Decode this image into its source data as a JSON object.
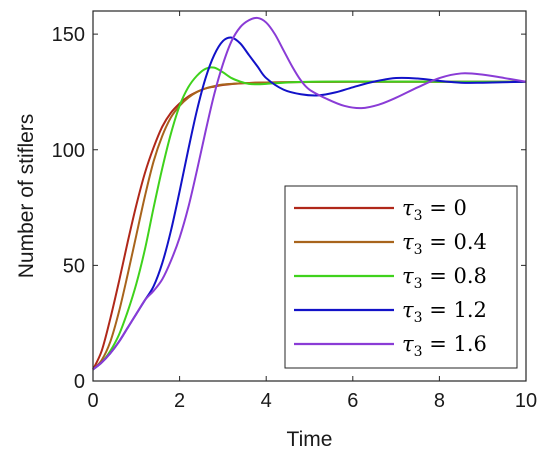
{
  "chart_data": {
    "type": "line",
    "xlabel": "Time",
    "ylabel": "Number of stiflers",
    "xlim": [
      0,
      10
    ],
    "ylim": [
      0,
      160
    ],
    "xticks": [
      "0",
      "2",
      "4",
      "6",
      "8",
      "10"
    ],
    "yticks": [
      "0",
      "50",
      "100",
      "150"
    ],
    "grid": false,
    "legend_position": "bottom-right",
    "series": [
      {
        "name": "τ3 = 0",
        "color": "#b0281a",
        "points": [
          [
            0,
            5
          ],
          [
            0.2,
            13
          ],
          [
            0.4,
            27
          ],
          [
            0.6,
            43
          ],
          [
            0.8,
            60
          ],
          [
            1.0,
            76
          ],
          [
            1.2,
            90
          ],
          [
            1.4,
            101
          ],
          [
            1.6,
            110
          ],
          [
            1.8,
            116
          ],
          [
            2.0,
            120
          ],
          [
            2.2,
            123
          ],
          [
            2.4,
            125
          ],
          [
            2.6,
            126.5
          ],
          [
            2.8,
            127.3
          ],
          [
            3.0,
            128
          ],
          [
            3.5,
            128.8
          ],
          [
            4.0,
            129.1
          ],
          [
            5.0,
            129.3
          ],
          [
            6.0,
            129.4
          ],
          [
            8.0,
            129.4
          ],
          [
            10.0,
            129.4
          ]
        ]
      },
      {
        "name": "τ3 = 0.4",
        "color": "#a8641c",
        "points": [
          [
            0,
            5
          ],
          [
            0.2,
            9
          ],
          [
            0.4,
            17
          ],
          [
            0.6,
            30
          ],
          [
            0.8,
            46
          ],
          [
            1.0,
            63
          ],
          [
            1.2,
            80
          ],
          [
            1.4,
            95
          ],
          [
            1.6,
            106
          ],
          [
            1.8,
            114
          ],
          [
            2.0,
            119
          ],
          [
            2.2,
            122.5
          ],
          [
            2.4,
            125
          ],
          [
            2.6,
            126.5
          ],
          [
            2.8,
            127.5
          ],
          [
            3.0,
            128.2
          ],
          [
            3.5,
            128.8
          ],
          [
            4.0,
            129.1
          ],
          [
            5.0,
            129.3
          ],
          [
            6.0,
            129.4
          ],
          [
            8.0,
            129.4
          ],
          [
            10.0,
            129.4
          ]
        ]
      },
      {
        "name": "τ3 = 0.8",
        "color": "#3fd21c",
        "points": [
          [
            0,
            5
          ],
          [
            0.2,
            8
          ],
          [
            0.4,
            13
          ],
          [
            0.6,
            20
          ],
          [
            0.8,
            30
          ],
          [
            1.0,
            42
          ],
          [
            1.2,
            57
          ],
          [
            1.4,
            75
          ],
          [
            1.6,
            92
          ],
          [
            1.8,
            107
          ],
          [
            2.0,
            119
          ],
          [
            2.2,
            127
          ],
          [
            2.4,
            132
          ],
          [
            2.6,
            135
          ],
          [
            2.8,
            135.5
          ],
          [
            3.0,
            133.5
          ],
          [
            3.2,
            131
          ],
          [
            3.4,
            129.5
          ],
          [
            3.6,
            128.5
          ],
          [
            3.8,
            128.3
          ],
          [
            4.0,
            128.5
          ],
          [
            4.5,
            129.1
          ],
          [
            5.0,
            129.4
          ],
          [
            6.0,
            129.5
          ],
          [
            8.0,
            129.4
          ],
          [
            10.0,
            129.4
          ]
        ]
      },
      {
        "name": "τ3 = 1.2",
        "color": "#1212c8",
        "points": [
          [
            0,
            5
          ],
          [
            0.2,
            8
          ],
          [
            0.4,
            12
          ],
          [
            0.6,
            17
          ],
          [
            0.8,
            23
          ],
          [
            1.0,
            29
          ],
          [
            1.2,
            35
          ],
          [
            1.4,
            41
          ],
          [
            1.6,
            51
          ],
          [
            1.8,
            65
          ],
          [
            2.0,
            82
          ],
          [
            2.2,
            100
          ],
          [
            2.4,
            117
          ],
          [
            2.6,
            131
          ],
          [
            2.8,
            141
          ],
          [
            3.0,
            147
          ],
          [
            3.2,
            148.5
          ],
          [
            3.4,
            146
          ],
          [
            3.6,
            141
          ],
          [
            3.8,
            136
          ],
          [
            4.0,
            131
          ],
          [
            4.4,
            126
          ],
          [
            4.8,
            124
          ],
          [
            5.2,
            123.5
          ],
          [
            5.6,
            124.8
          ],
          [
            6.0,
            127
          ],
          [
            6.5,
            129.5
          ],
          [
            7.0,
            131
          ],
          [
            7.5,
            130.8
          ],
          [
            8.0,
            129.8
          ],
          [
            8.5,
            129
          ],
          [
            9.0,
            129
          ],
          [
            10.0,
            129.4
          ]
        ]
      },
      {
        "name": "τ3 = 1.6",
        "color": "#8a3cd6",
        "points": [
          [
            0,
            5
          ],
          [
            0.2,
            8
          ],
          [
            0.4,
            12
          ],
          [
            0.6,
            17
          ],
          [
            0.8,
            23
          ],
          [
            1.0,
            29
          ],
          [
            1.2,
            35
          ],
          [
            1.4,
            39
          ],
          [
            1.6,
            44
          ],
          [
            1.8,
            52
          ],
          [
            2.0,
            62
          ],
          [
            2.2,
            75
          ],
          [
            2.4,
            91
          ],
          [
            2.6,
            108
          ],
          [
            2.8,
            124
          ],
          [
            3.0,
            137
          ],
          [
            3.2,
            147
          ],
          [
            3.4,
            153
          ],
          [
            3.6,
            156
          ],
          [
            3.8,
            157
          ],
          [
            4.0,
            155
          ],
          [
            4.2,
            150
          ],
          [
            4.4,
            143
          ],
          [
            4.6,
            136
          ],
          [
            4.8,
            130
          ],
          [
            5.0,
            126
          ],
          [
            5.4,
            122
          ],
          [
            5.8,
            119
          ],
          [
            6.2,
            118
          ],
          [
            6.6,
            119.5
          ],
          [
            7.0,
            122.5
          ],
          [
            7.5,
            127
          ],
          [
            8.0,
            131
          ],
          [
            8.5,
            133
          ],
          [
            9.0,
            132.5
          ],
          [
            9.5,
            131
          ],
          [
            10.0,
            129.4
          ]
        ]
      }
    ]
  },
  "legend": [
    {
      "sym": "τ",
      "sub": "3",
      "eq": " = 0"
    },
    {
      "sym": "τ",
      "sub": "3",
      "eq": " = 0.4"
    },
    {
      "sym": "τ",
      "sub": "3",
      "eq": " = 0.8"
    },
    {
      "sym": "τ",
      "sub": "3",
      "eq": " = 1.2"
    },
    {
      "sym": "τ",
      "sub": "3",
      "eq": " = 1.6"
    }
  ]
}
